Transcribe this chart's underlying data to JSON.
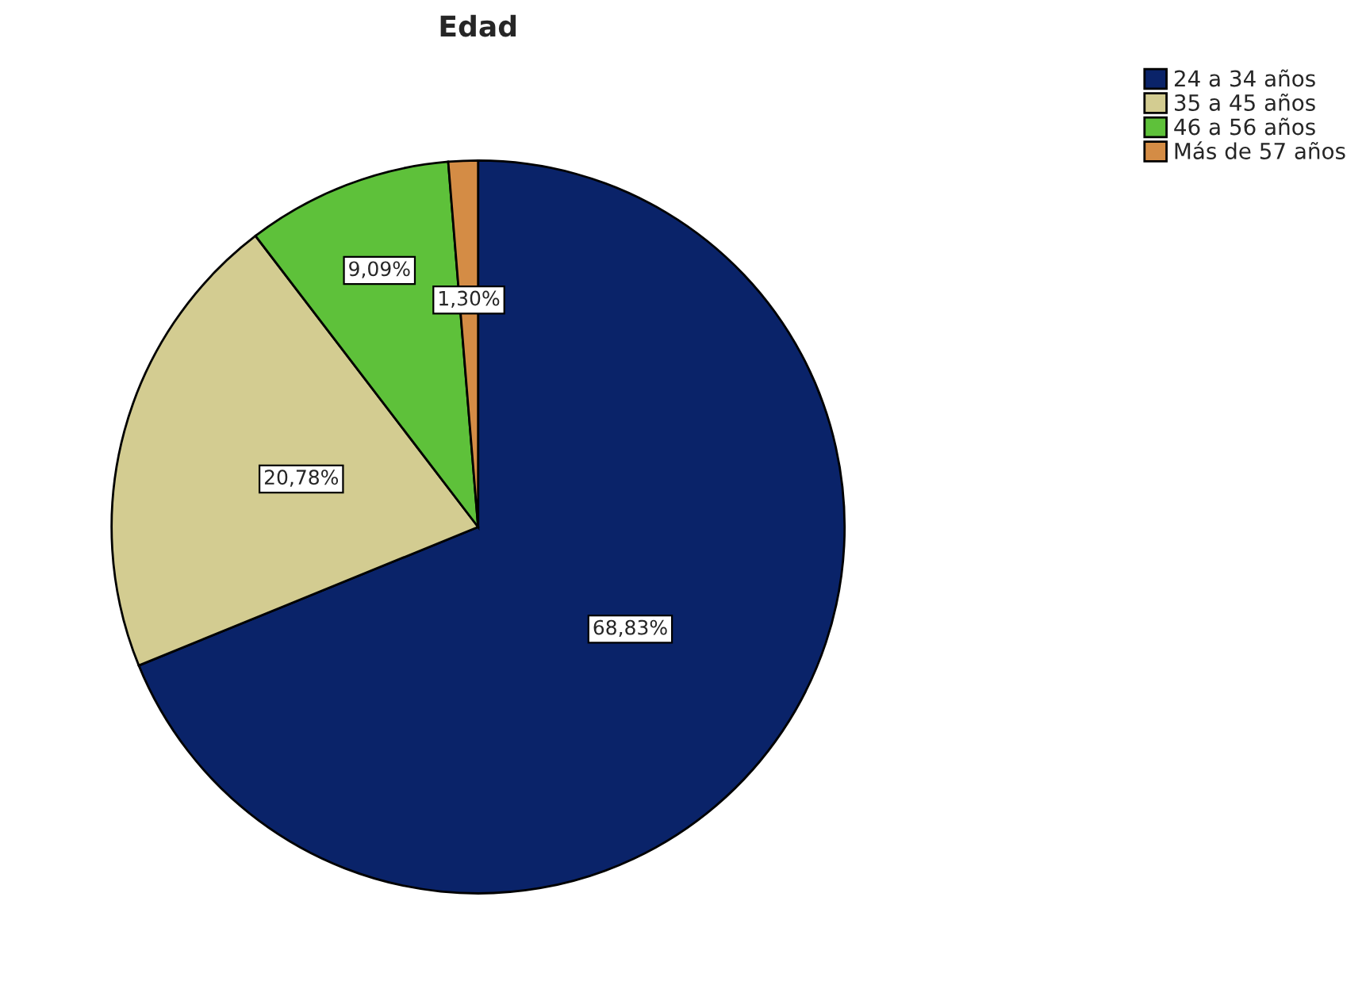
{
  "chart_data": {
    "type": "pie",
    "title": "Edad",
    "categories": [
      "24 a 34 años",
      "35 a 45 años",
      "46 a 56 años",
      "Más de 57 años"
    ],
    "values": [
      68.83,
      20.78,
      9.09,
      1.3
    ],
    "colors": [
      "#0a2369",
      "#d3cc91",
      "#5ec13a",
      "#d48c45"
    ],
    "value_labels": [
      "68,83%",
      "20,78%",
      "9,09%",
      "1,30%"
    ],
    "legend": "top right"
  }
}
